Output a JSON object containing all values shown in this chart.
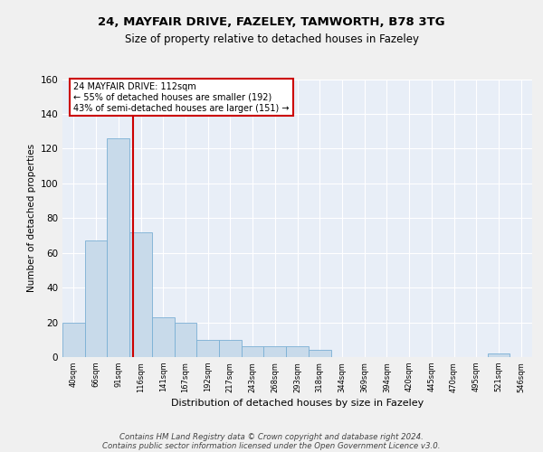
{
  "title1": "24, MAYFAIR DRIVE, FAZELEY, TAMWORTH, B78 3TG",
  "title2": "Size of property relative to detached houses in Fazeley",
  "xlabel": "Distribution of detached houses by size in Fazeley",
  "ylabel": "Number of detached properties",
  "bin_labels": [
    "40sqm",
    "66sqm",
    "91sqm",
    "116sqm",
    "141sqm",
    "167sqm",
    "192sqm",
    "217sqm",
    "243sqm",
    "268sqm",
    "293sqm",
    "318sqm",
    "344sqm",
    "369sqm",
    "394sqm",
    "420sqm",
    "445sqm",
    "470sqm",
    "495sqm",
    "521sqm",
    "546sqm"
  ],
  "bar_heights": [
    20,
    67,
    126,
    72,
    23,
    20,
    10,
    10,
    6,
    6,
    6,
    4,
    0,
    0,
    0,
    0,
    0,
    0,
    0,
    2,
    0
  ],
  "bar_color": "#c8daea",
  "bar_edgecolor": "#7aafd4",
  "annotation_line1": "24 MAYFAIR DRIVE: 112sqm",
  "annotation_line2": "← 55% of detached houses are smaller (192)",
  "annotation_line3": "43% of semi-detached houses are larger (151) →",
  "annotation_box_color": "#ffffff",
  "annotation_box_edgecolor": "#cc0000",
  "ylim": [
    0,
    160
  ],
  "yticks": [
    0,
    20,
    40,
    60,
    80,
    100,
    120,
    140,
    160
  ],
  "background_color": "#e8eef7",
  "grid_color": "#ffffff",
  "footer_line1": "Contains HM Land Registry data © Crown copyright and database right 2024.",
  "footer_line2": "Contains public sector information licensed under the Open Government Licence v3.0.",
  "red_line_color": "#cc0000",
  "red_line_x": 2.65,
  "fig_bg": "#f0f0f0"
}
